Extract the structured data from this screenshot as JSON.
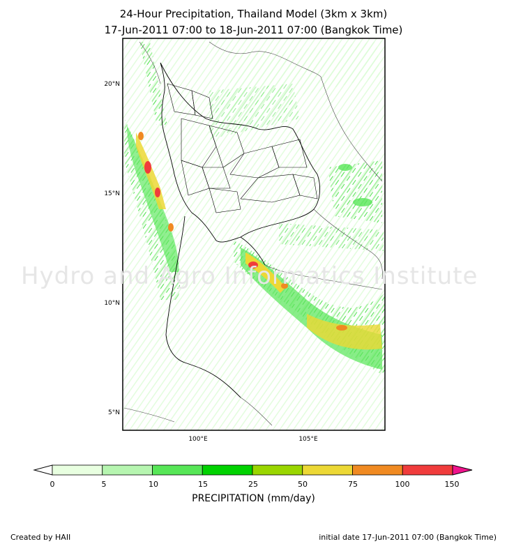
{
  "title_line1": "24-Hour Precipitation, Thailand Model (3km x 3km)",
  "title_line2": "17-Jun-2011 07:00 to 18-Jun-2011 07:00 (Bangkok Time)",
  "watermark": "Hydro and Agro Informatics Institute",
  "lat_labels": [
    {
      "text": "20°N",
      "value": 20
    },
    {
      "text": "15°N",
      "value": 15
    },
    {
      "text": "10°N",
      "value": 10
    },
    {
      "text": "5°N",
      "value": 5
    }
  ],
  "lon_labels": [
    {
      "text": "100°E",
      "value": 100
    },
    {
      "text": "105°E",
      "value": 105
    }
  ],
  "legend": {
    "title": "PRECIPITATION (mm/day)",
    "ticks": [
      "0",
      "5",
      "10",
      "15",
      "25",
      "50",
      "75",
      "100",
      "150"
    ],
    "colors": [
      "#ffffff",
      "#e8ffe0",
      "#b6f5b0",
      "#57e657",
      "#00d200",
      "#9ad600",
      "#ecd835",
      "#f08a22",
      "#f03c3c",
      "#f0148c"
    ]
  },
  "footer": {
    "left": "Created by HAII",
    "right": "initial date 17-Jun-2011 07:00 (Bangkok Time)"
  },
  "map": {
    "lat_range": [
      4.4,
      22.2
    ],
    "lon_range": [
      96.6,
      108.5
    ],
    "heavy_rain_zones": [
      "western Myanmar coast",
      "eastern Gulf of Thailand / Cambodia coast",
      "southern Vietnam"
    ]
  }
}
